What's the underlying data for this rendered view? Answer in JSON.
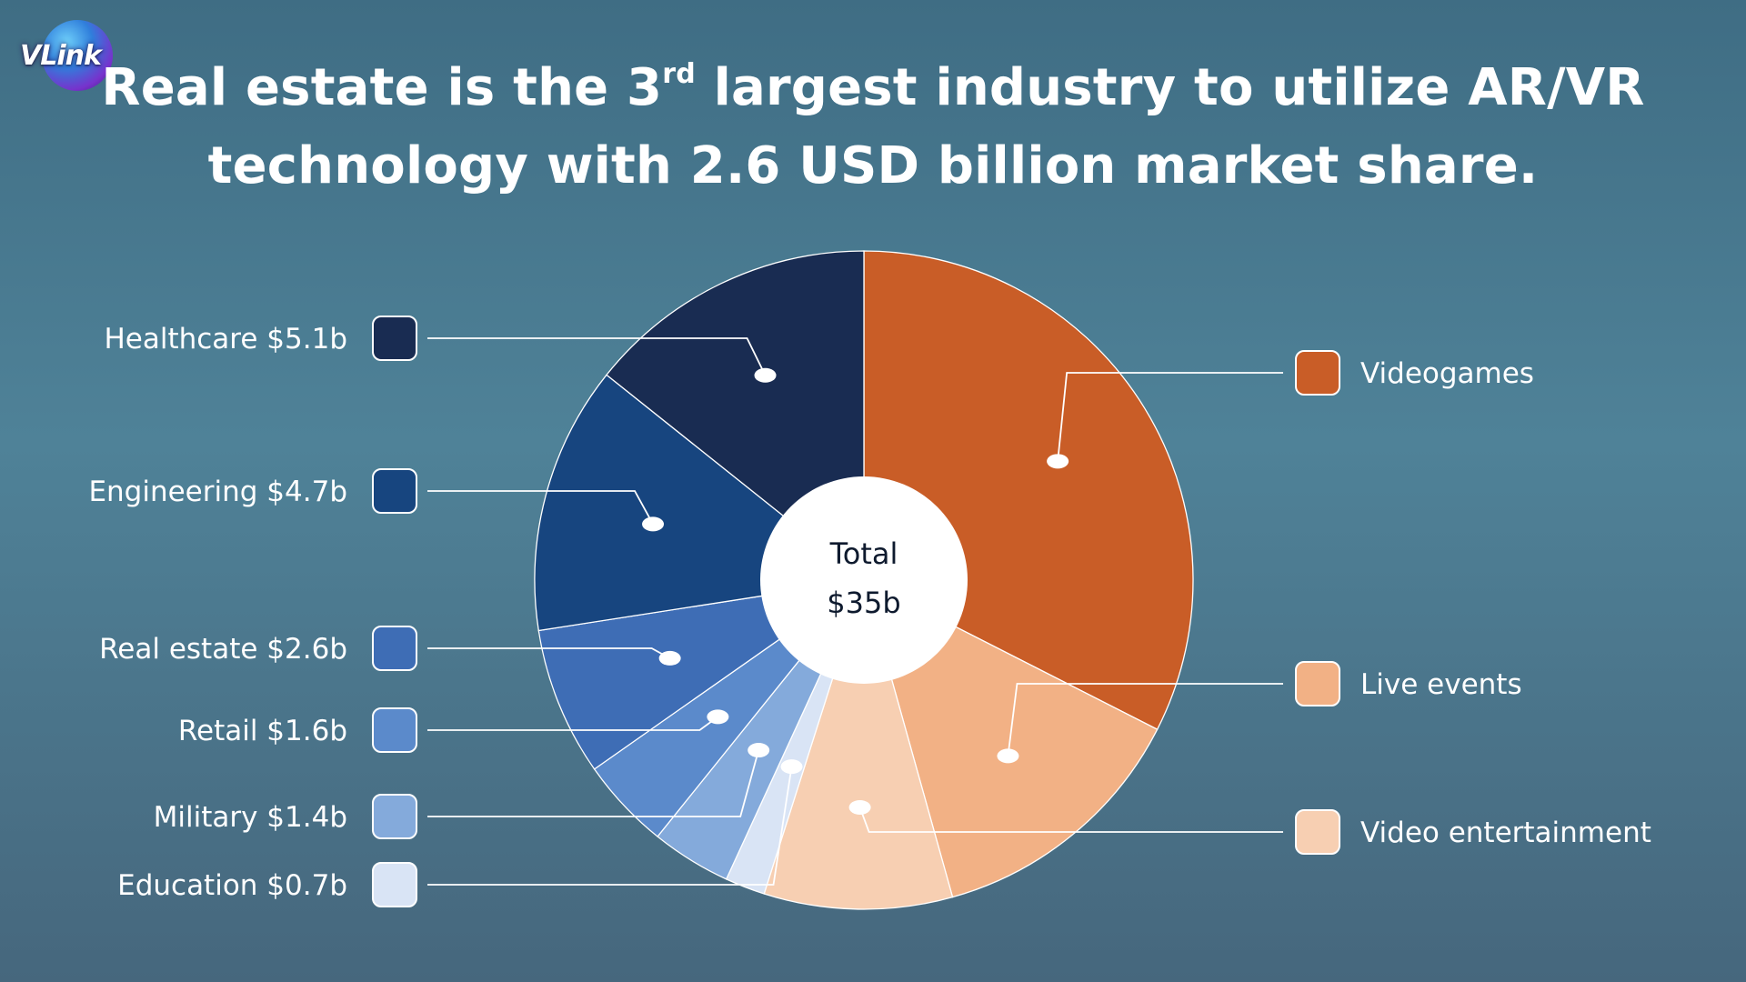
{
  "brand": {
    "logo_text": "VLink"
  },
  "headline": {
    "line1_before": "Real estate is the 3",
    "line1_sup": "rd",
    "line1_after": " largest industry to utilize AR/VR",
    "line2": "technology with 2.6 USD billion market share."
  },
  "colors": {
    "background_top": "#3f6d84",
    "background_mid": "#4f8298",
    "background_bottom": "#46677d",
    "text": "#ffffff",
    "connector": "#ffffff"
  },
  "chart_data": {
    "type": "pie",
    "center_label": [
      "Total",
      "$35b"
    ],
    "total": 35,
    "unit": "USD billion",
    "slices": [
      {
        "name": "Videogames",
        "label": "Videogames",
        "value": 11.6,
        "color": "#c95d27",
        "side": "right"
      },
      {
        "name": "Live events",
        "label": "Live events",
        "value": 4.7,
        "color": "#f2b185",
        "side": "right"
      },
      {
        "name": "Video entertainment",
        "label": "Video entertainment",
        "value": 3.3,
        "color": "#f7cfb2",
        "side": "right"
      },
      {
        "name": "Education",
        "label": "Education $0.7b",
        "value": 0.7,
        "color": "#d9e4f5",
        "side": "left"
      },
      {
        "name": "Military",
        "label": "Military $1.4b",
        "value": 1.4,
        "color": "#84aadb",
        "side": "left"
      },
      {
        "name": "Retail",
        "label": "Retail $1.6b",
        "value": 1.6,
        "color": "#5b8acb",
        "side": "left"
      },
      {
        "name": "Real estate",
        "label": "Real estate $2.6b",
        "value": 2.6,
        "color": "#3e6db5",
        "side": "left"
      },
      {
        "name": "Engineering",
        "label": "Engineering $4.7b",
        "value": 4.7,
        "color": "#17457f",
        "side": "left"
      },
      {
        "name": "Healthcare",
        "label": "Healthcare $5.1b",
        "value": 5.1,
        "color": "#192c52",
        "side": "left"
      }
    ]
  }
}
